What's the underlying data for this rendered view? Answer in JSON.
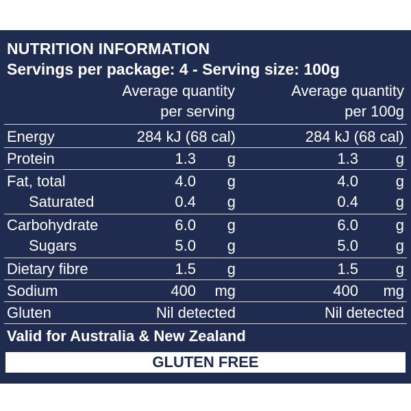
{
  "panel": {
    "title": "NUTRITION INFORMATION",
    "servings": "Servings per package: 4 - Serving size: 100g",
    "columns": {
      "per_serving": [
        "Average quantity",
        "per serving"
      ],
      "per_100g": [
        "Average quantity",
        "per 100g"
      ]
    },
    "rows": [
      {
        "label": "Energy",
        "serving": "284 kJ (68 cal)",
        "per100": "284 kJ (68 cal)"
      },
      {
        "label": "Protein",
        "serving_value": "1.3",
        "serving_unit": "g",
        "per100_value": "1.3",
        "per100_unit": "g"
      },
      {
        "label": "Fat, total",
        "serving_value": "4.0",
        "serving_unit": "g",
        "per100_value": "4.0",
        "per100_unit": "g"
      },
      {
        "label": "Saturated",
        "serving_value": "0.4",
        "serving_unit": "g",
        "per100_value": "0.4",
        "per100_unit": "g"
      },
      {
        "label": "Carbohydrate",
        "serving_value": "6.0",
        "serving_unit": "g",
        "per100_value": "6.0",
        "per100_unit": "g"
      },
      {
        "label": "Sugars",
        "serving_value": "5.0",
        "serving_unit": "g",
        "per100_value": "5.0",
        "per100_unit": "g"
      },
      {
        "label": "Dietary fibre",
        "serving_value": "1.5",
        "serving_unit": "g",
        "per100_value": "1.5",
        "per100_unit": "g"
      },
      {
        "label": "Sodium",
        "serving_value": "400",
        "serving_unit": "mg",
        "per100_value": "400",
        "per100_unit": "mg"
      },
      {
        "label": "Gluten",
        "serving": "Nil detected",
        "per100": "Nil detected"
      }
    ],
    "footer_note": "Valid for Australia & New Zealand",
    "badge": "GLUTEN FREE"
  },
  "colors": {
    "panel_bg": "#1f2b4f",
    "text": "#ffffff",
    "badge_bg": "#ffffff",
    "badge_text": "#1f2b4f"
  }
}
